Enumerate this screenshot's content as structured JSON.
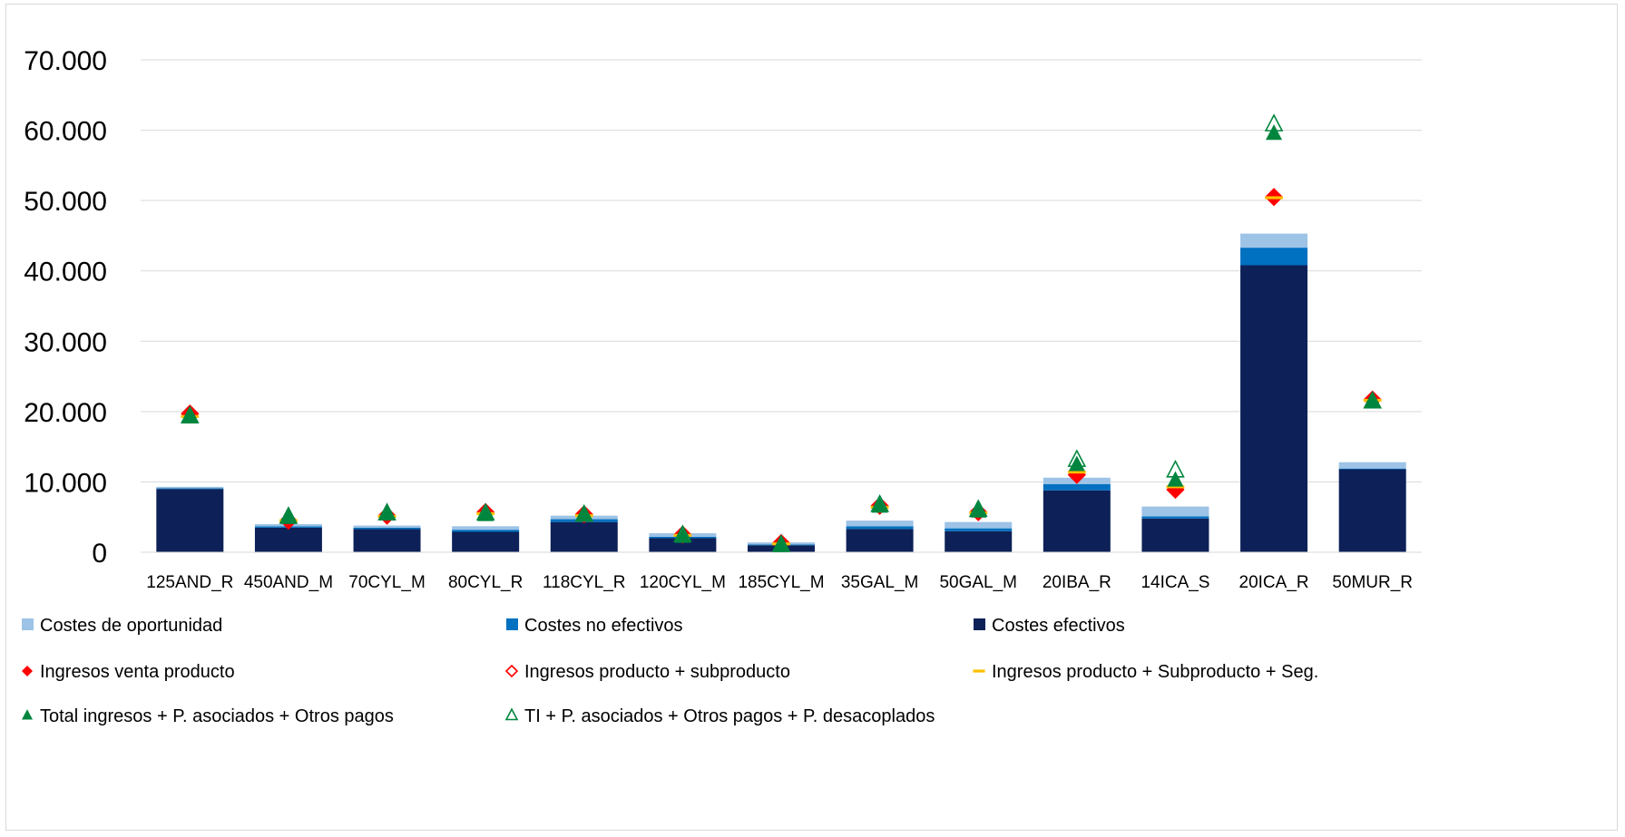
{
  "chart_data": {
    "type": "bar",
    "stacked": true,
    "title": "",
    "xlabel": "",
    "ylabel": "",
    "ylim": [
      0,
      70000
    ],
    "ytick_step": 10000,
    "ytick_labels": [
      "0",
      "10.000",
      "20.000",
      "30.000",
      "40.000",
      "50.000",
      "60.000",
      "70.000"
    ],
    "grid": true,
    "legend_position": "bottom",
    "categories": [
      "125AND_R",
      "450AND_M",
      "70CYL_M",
      "80CYL_R",
      "118CYL_R",
      "120CYL_M",
      "185CYL_M",
      "35GAL_M",
      "50GAL_M",
      "20IBA_R",
      "14ICA_S",
      "20ICA_R",
      "50MUR_R"
    ],
    "bar_series": [
      {
        "name": "Costes efectivos",
        "color": "#0d2158",
        "values": [
          9000,
          3500,
          3300,
          2900,
          4300,
          2000,
          1000,
          3300,
          3000,
          8800,
          4800,
          40800,
          11800
        ]
      },
      {
        "name": "Costes no efectivos",
        "color": "#0070c0",
        "values": [
          100,
          200,
          200,
          300,
          400,
          200,
          100,
          400,
          400,
          900,
          300,
          2500,
          100
        ]
      },
      {
        "name": "Costes de oportunidad",
        "color": "#9dc3e6",
        "values": [
          200,
          300,
          300,
          500,
          500,
          500,
          300,
          800,
          900,
          900,
          1400,
          2000,
          900
        ]
      }
    ],
    "marker_series": [
      {
        "name": "Ingresos venta producto",
        "marker": "diamond-filled",
        "color": "#ff0000",
        "values": [
          19700,
          4500,
          5200,
          5700,
          5400,
          2500,
          1300,
          6600,
          5700,
          11000,
          8900,
          50500,
          21700
        ]
      },
      {
        "name": "Ingresos producto + subproducto",
        "marker": "diamond-open",
        "color": "#ff0000",
        "values": [
          19700,
          4500,
          5200,
          5700,
          5400,
          2500,
          1300,
          6600,
          5700,
          11000,
          8900,
          50500,
          21700
        ]
      },
      {
        "name": "Ingresos producto + Subproducto + Seg.",
        "marker": "dash",
        "color": "#ffc000",
        "values": [
          19300,
          4500,
          5100,
          5500,
          5200,
          2400,
          1200,
          6400,
          5600,
          11400,
          9300,
          50400,
          21600
        ]
      },
      {
        "name": "Total ingresos + P. asociados + Otros pagos",
        "marker": "triangle-filled",
        "color": "#00853e",
        "values": [
          19200,
          4900,
          5400,
          5300,
          5200,
          2200,
          900,
          6500,
          5800,
          12400,
          10200,
          59500,
          21400
        ]
      },
      {
        "name": "TI + P. asociados + Otros pagos + P. desacoplados",
        "marker": "triangle-open",
        "color": "#00853e",
        "values": [
          19300,
          5000,
          5500,
          5500,
          5300,
          2400,
          1000,
          6700,
          6000,
          13100,
          11600,
          60800,
          21400
        ]
      }
    ],
    "legend_order": [
      "Costes de oportunidad",
      "Costes no efectivos",
      "Costes efectivos",
      "Ingresos venta producto",
      "Ingresos producto + subproducto",
      "Ingresos producto + Subproducto + Seg.",
      "Total ingresos + P. asociados + Otros pagos",
      "TI + P. asociados + Otros pagos + P. desacoplados"
    ]
  }
}
